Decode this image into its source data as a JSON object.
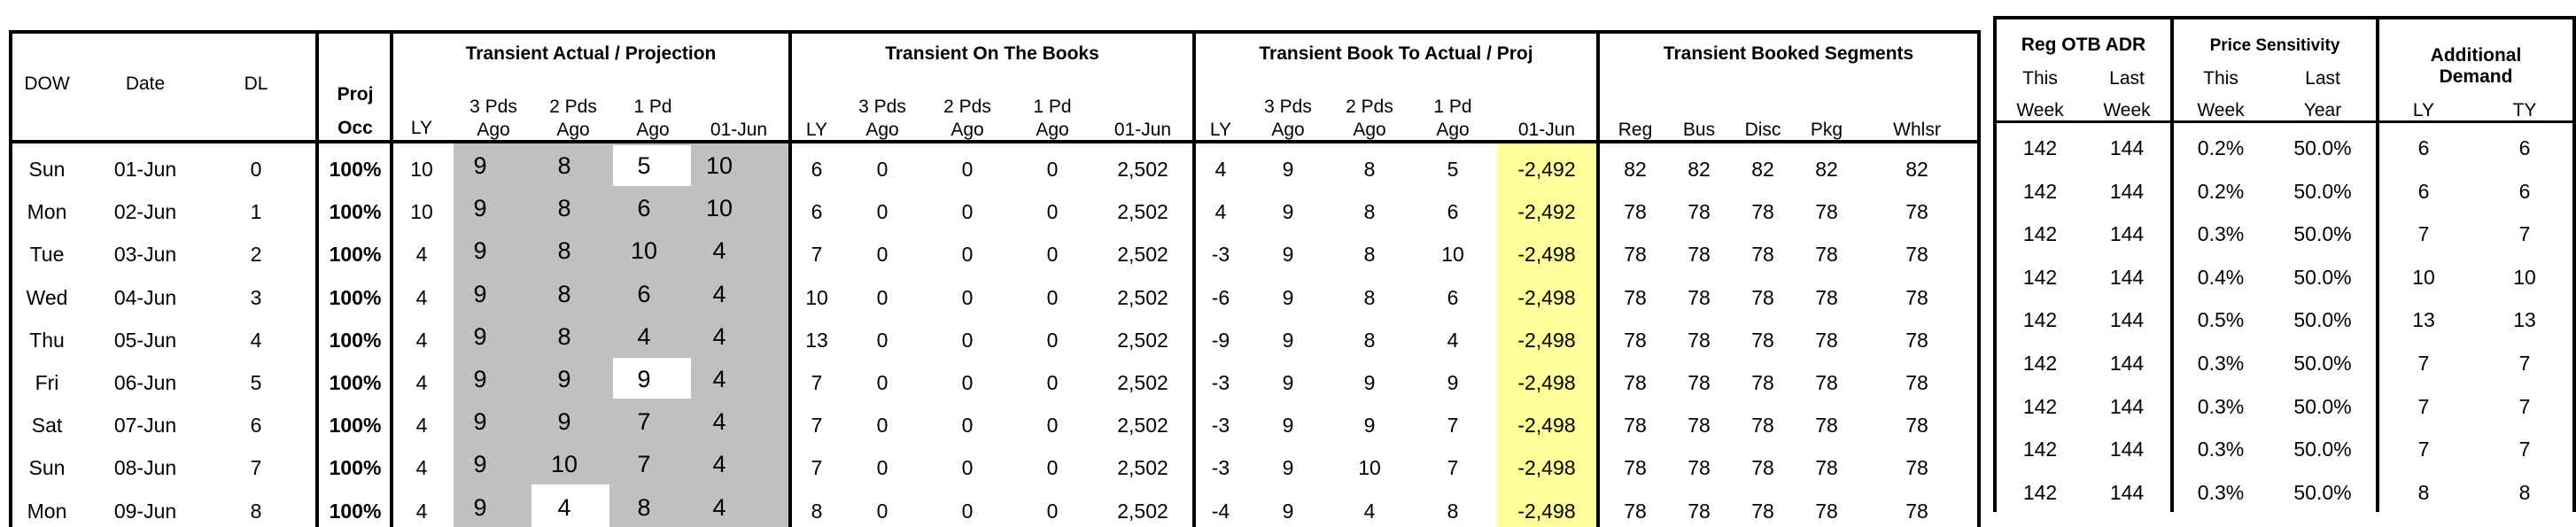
{
  "header": {
    "dow": "DOW",
    "date": "Date",
    "dl": "DL",
    "proj_line1": "Proj",
    "proj_line2": "Occ",
    "transient_actual_title": "Transient Actual / Projection",
    "on_books_title": "Transient On The Books",
    "book_to_actual_title": "Transient Book To Actual / Proj",
    "segments_title": "Transient Booked Segments",
    "reg_otb_title": "Reg OTB ADR",
    "price_sensitivity_title": "Price Sensitivity",
    "additional_demand_line1": "Additional",
    "additional_demand_line2": "Demand",
    "ly": "LY",
    "pds3_a": "3 Pds",
    "pds2_a": "2 Pds",
    "pds1_a": "1 Pd",
    "ago": "Ago",
    "jun01": "01-Jun",
    "seg_reg": "Reg",
    "seg_bus": "Bus",
    "seg_disc": "Disc",
    "seg_pkg": "Pkg",
    "seg_whlsr": "Whlsr",
    "this_label": "This",
    "last_label": "Last",
    "week": "Week",
    "year": "Year",
    "ty": "TY"
  },
  "rows": [
    {
      "dow": "Sun",
      "date": "01-Jun",
      "dl": "0",
      "occ": "100%",
      "ta": [
        "10",
        "9",
        "8",
        "5",
        "10"
      ],
      "otb": [
        "6",
        "0",
        "0",
        "0",
        "2,502"
      ],
      "bta": [
        "4",
        "9",
        "8",
        "5",
        "-2,492"
      ],
      "seg": [
        "82",
        "82",
        "82",
        "82",
        "82"
      ],
      "adr": [
        "142",
        "144"
      ],
      "ps": [
        "0.2%",
        "50.0%"
      ],
      "ad": [
        "6",
        "6"
      ]
    },
    {
      "dow": "Mon",
      "date": "02-Jun",
      "dl": "1",
      "occ": "100%",
      "ta": [
        "10",
        "9",
        "8",
        "6",
        "10"
      ],
      "otb": [
        "6",
        "0",
        "0",
        "0",
        "2,502"
      ],
      "bta": [
        "4",
        "9",
        "8",
        "6",
        "-2,492"
      ],
      "seg": [
        "78",
        "78",
        "78",
        "78",
        "78"
      ],
      "adr": [
        "142",
        "144"
      ],
      "ps": [
        "0.2%",
        "50.0%"
      ],
      "ad": [
        "6",
        "6"
      ]
    },
    {
      "dow": "Tue",
      "date": "03-Jun",
      "dl": "2",
      "occ": "100%",
      "ta": [
        "4",
        "9",
        "8",
        "10",
        "4"
      ],
      "otb": [
        "7",
        "0",
        "0",
        "0",
        "2,502"
      ],
      "bta": [
        "-3",
        "9",
        "8",
        "10",
        "-2,498"
      ],
      "seg": [
        "78",
        "78",
        "78",
        "78",
        "78"
      ],
      "adr": [
        "142",
        "144"
      ],
      "ps": [
        "0.3%",
        "50.0%"
      ],
      "ad": [
        "7",
        "7"
      ]
    },
    {
      "dow": "Wed",
      "date": "04-Jun",
      "dl": "3",
      "occ": "100%",
      "ta": [
        "4",
        "9",
        "8",
        "6",
        "4"
      ],
      "otb": [
        "10",
        "0",
        "0",
        "0",
        "2,502"
      ],
      "bta": [
        "-6",
        "9",
        "8",
        "6",
        "-2,498"
      ],
      "seg": [
        "78",
        "78",
        "78",
        "78",
        "78"
      ],
      "adr": [
        "142",
        "144"
      ],
      "ps": [
        "0.4%",
        "50.0%"
      ],
      "ad": [
        "10",
        "10"
      ]
    },
    {
      "dow": "Thu",
      "date": "05-Jun",
      "dl": "4",
      "occ": "100%",
      "ta": [
        "4",
        "9",
        "8",
        "4",
        "4"
      ],
      "otb": [
        "13",
        "0",
        "0",
        "0",
        "2,502"
      ],
      "bta": [
        "-9",
        "9",
        "8",
        "4",
        "-2,498"
      ],
      "seg": [
        "78",
        "78",
        "78",
        "78",
        "78"
      ],
      "adr": [
        "142",
        "144"
      ],
      "ps": [
        "0.5%",
        "50.0%"
      ],
      "ad": [
        "13",
        "13"
      ]
    },
    {
      "dow": "Fri",
      "date": "06-Jun",
      "dl": "5",
      "occ": "100%",
      "ta": [
        "4",
        "9",
        "9",
        "9",
        "4"
      ],
      "otb": [
        "7",
        "0",
        "0",
        "0",
        "2,502"
      ],
      "bta": [
        "-3",
        "9",
        "9",
        "9",
        "-2,498"
      ],
      "seg": [
        "78",
        "78",
        "78",
        "78",
        "78"
      ],
      "adr": [
        "142",
        "144"
      ],
      "ps": [
        "0.3%",
        "50.0%"
      ],
      "ad": [
        "7",
        "7"
      ]
    },
    {
      "dow": "Sat",
      "date": "07-Jun",
      "dl": "6",
      "occ": "100%",
      "ta": [
        "4",
        "9",
        "9",
        "7",
        "4"
      ],
      "otb": [
        "7",
        "0",
        "0",
        "0",
        "2,502"
      ],
      "bta": [
        "-3",
        "9",
        "9",
        "7",
        "-2,498"
      ],
      "seg": [
        "78",
        "78",
        "78",
        "78",
        "78"
      ],
      "adr": [
        "142",
        "144"
      ],
      "ps": [
        "0.3%",
        "50.0%"
      ],
      "ad": [
        "7",
        "7"
      ]
    },
    {
      "dow": "Sun",
      "date": "08-Jun",
      "dl": "7",
      "occ": "100%",
      "ta": [
        "4",
        "9",
        "10",
        "7",
        "4"
      ],
      "otb": [
        "7",
        "0",
        "0",
        "0",
        "2,502"
      ],
      "bta": [
        "-3",
        "9",
        "10",
        "7",
        "-2,498"
      ],
      "seg": [
        "78",
        "78",
        "78",
        "78",
        "78"
      ],
      "adr": [
        "142",
        "144"
      ],
      "ps": [
        "0.3%",
        "50.0%"
      ],
      "ad": [
        "7",
        "7"
      ]
    },
    {
      "dow": "Mon",
      "date": "09-Jun",
      "dl": "8",
      "occ": "100%",
      "ta": [
        "4",
        "9",
        "4",
        "8",
        "4"
      ],
      "otb": [
        "8",
        "0",
        "0",
        "0",
        "2,502"
      ],
      "bta": [
        "-4",
        "9",
        "4",
        "8",
        "-2,498"
      ],
      "seg": [
        "78",
        "78",
        "78",
        "78",
        "78"
      ],
      "adr": [
        "142",
        "144"
      ],
      "ps": [
        "0.3%",
        "50.0%"
      ],
      "ad": [
        "8",
        "8"
      ]
    }
  ],
  "colors": {
    "shade": "#c0c0c0",
    "highlight": "#ffff99"
  }
}
